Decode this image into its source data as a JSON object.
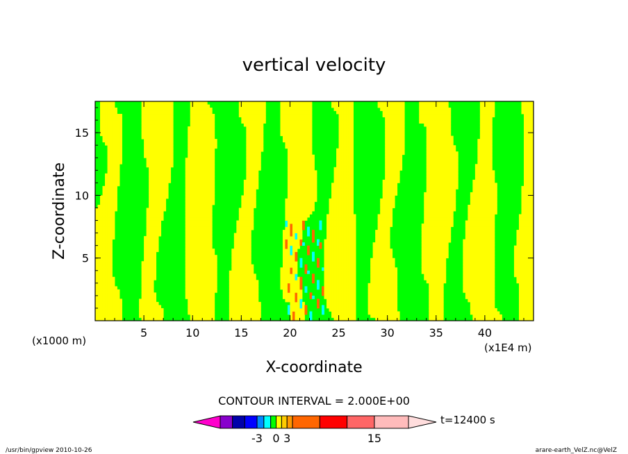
{
  "chart_data": {
    "type": "heatmap",
    "title": "vertical velocity",
    "xlabel": "X-coordinate",
    "ylabel": "Z-coordinate",
    "x_units": "(x1E4 m)",
    "y_units": "(x1000 m)",
    "xlim": [
      0,
      45
    ],
    "ylim": [
      0,
      17.5
    ],
    "x_ticks": [
      "5",
      "10",
      "15",
      "20",
      "25",
      "30",
      "35",
      "40"
    ],
    "y_ticks": [
      "5",
      "10",
      "15"
    ],
    "grid": false,
    "contour_interval": "CONTOUR INTERVAL = 2.000E+00",
    "colorbar": {
      "colors": [
        "#ff00cc",
        "#8800cc",
        "#0000aa",
        "#0000ff",
        "#0088ff",
        "#00ffff",
        "#00ff00",
        "#ffff00",
        "#ffcc00",
        "#ff9900",
        "#ff6600",
        "#ff0000",
        "#ff6666",
        "#ffbbbb",
        "#ffdddd"
      ],
      "labels": [
        "-3",
        "0",
        "3",
        "15"
      ],
      "time_label": "t=12400 s"
    },
    "field_colors": {
      "negative_weak": "#00ff00",
      "positive_weak": "#ffff00",
      "strong_negative": "#00ffff",
      "strong_positive": "#ff6600"
    }
  },
  "footer": {
    "left": "/usr/bin/gpview   2010-10-26",
    "right": "arare-earth_VelZ.nc@VelZ"
  }
}
